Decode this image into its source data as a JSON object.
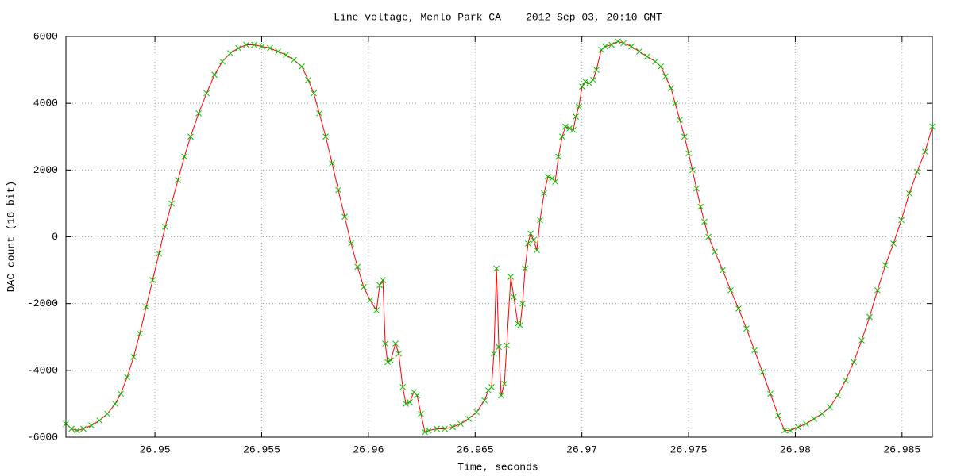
{
  "chart_data": {
    "type": "line",
    "title": "Line voltage, Menlo Park CA    2012 Sep 03, 20:10 GMT",
    "x_label": "Time, seconds",
    "y_label": "DAC count (16 bit)",
    "xlim": [
      26.94583,
      26.98642
    ],
    "xticks": [
      26.95,
      26.955,
      26.96,
      26.965,
      26.97,
      26.975,
      26.98,
      26.985
    ],
    "ylim": [
      -6000,
      6000
    ],
    "yticks": [
      -6000,
      -4000,
      -2000,
      0,
      2000,
      4000,
      6000
    ],
    "grid": true,
    "series": [
      {
        "color": "#ff0000",
        "marker_color": "#00c000",
        "x": [
          26.94583,
          26.94609,
          26.94635,
          26.94665,
          26.94702,
          26.9474,
          26.94777,
          26.94814,
          26.9484,
          26.9487,
          26.949,
          26.94929,
          26.94959,
          26.94989,
          26.95019,
          26.95048,
          26.95078,
          26.95108,
          26.95138,
          26.95167,
          26.95205,
          26.95242,
          26.95279,
          26.95316,
          26.95353,
          26.95391,
          26.95428,
          26.95465,
          26.95502,
          26.95539,
          26.95577,
          26.95614,
          26.95651,
          26.95688,
          26.95718,
          26.95744,
          26.9577,
          26.958,
          26.9583,
          26.95859,
          26.95889,
          26.95919,
          26.95949,
          26.95978,
          26.96008,
          26.96038,
          26.96053,
          26.96068,
          26.96079,
          26.9609,
          26.96105,
          26.96127,
          26.96142,
          26.96161,
          26.96176,
          26.96194,
          26.96213,
          26.96228,
          26.96246,
          26.96265,
          26.96283,
          26.96321,
          26.96358,
          26.96395,
          26.96432,
          26.96469,
          26.96507,
          26.96544,
          26.96562,
          26.96577,
          26.96588,
          26.966,
          26.96611,
          26.96622,
          26.96637,
          26.96648,
          26.96667,
          26.96681,
          26.967,
          26.96711,
          26.96722,
          26.96734,
          26.96748,
          26.9676,
          26.96774,
          26.96789,
          26.96804,
          26.96823,
          26.96841,
          26.9686,
          26.96875,
          26.9689,
          26.96908,
          26.96923,
          26.96942,
          26.9696,
          26.96972,
          26.96986,
          26.97001,
          26.97016,
          26.97035,
          26.97053,
          26.97068,
          26.97091,
          26.97109,
          26.97139,
          26.97169,
          26.97195,
          26.97232,
          26.97269,
          26.97306,
          26.97344,
          26.9737,
          26.97392,
          26.97418,
          26.97437,
          26.97459,
          26.97481,
          26.975,
          26.97518,
          26.97537,
          26.97556,
          26.97574,
          26.97593,
          26.97623,
          26.9766,
          26.97697,
          26.97734,
          26.97771,
          26.97809,
          26.97846,
          26.97883,
          26.9792,
          26.9795,
          26.97976,
          26.98013,
          26.9805,
          26.98088,
          26.98125,
          26.98162,
          26.98199,
          26.98236,
          26.98274,
          26.98311,
          26.98348,
          26.98385,
          26.98422,
          26.9846,
          26.98497,
          26.98534,
          26.98571,
          26.98608,
          26.98642
        ],
        "values": [
          -5600,
          -5750,
          -5800,
          -5750,
          -5650,
          -5500,
          -5300,
          -5000,
          -4700,
          -4200,
          -3600,
          -2900,
          -2100,
          -1300,
          -500,
          300,
          1000,
          1700,
          2400,
          3000,
          3700,
          4300,
          4850,
          5250,
          5500,
          5650,
          5750,
          5750,
          5700,
          5650,
          5550,
          5450,
          5300,
          5100,
          4700,
          4300,
          3700,
          3000,
          2200,
          1400,
          600,
          -200,
          -900,
          -1500,
          -1900,
          -2200,
          -1450,
          -1300,
          -3200,
          -3750,
          -3700,
          -3200,
          -3500,
          -4500,
          -5000,
          -4950,
          -4650,
          -4750,
          -5300,
          -5850,
          -5800,
          -5750,
          -5750,
          -5700,
          -5600,
          -5450,
          -5250,
          -4900,
          -4600,
          -4500,
          -3500,
          -950,
          -3300,
          -4750,
          -4400,
          -3250,
          -1200,
          -1800,
          -2600,
          -2650,
          -2000,
          -950,
          -200,
          100,
          -100,
          -400,
          500,
          1300,
          1800,
          1750,
          1650,
          2400,
          3000,
          3300,
          3250,
          3200,
          3600,
          3900,
          4500,
          4650,
          4600,
          4700,
          5000,
          5600,
          5700,
          5750,
          5850,
          5800,
          5700,
          5550,
          5400,
          5250,
          5100,
          4800,
          4450,
          4000,
          3500,
          3000,
          2500,
          2000,
          1450,
          900,
          450,
          0,
          -450,
          -1000,
          -1600,
          -2150,
          -2750,
          -3400,
          -4050,
          -4700,
          -5350,
          -5800,
          -5800,
          -5700,
          -5600,
          -5450,
          -5300,
          -5100,
          -4750,
          -4300,
          -3750,
          -3100,
          -2400,
          -1600,
          -850,
          -200,
          500,
          1300,
          1950,
          2550,
          3300
        ]
      }
    ]
  }
}
